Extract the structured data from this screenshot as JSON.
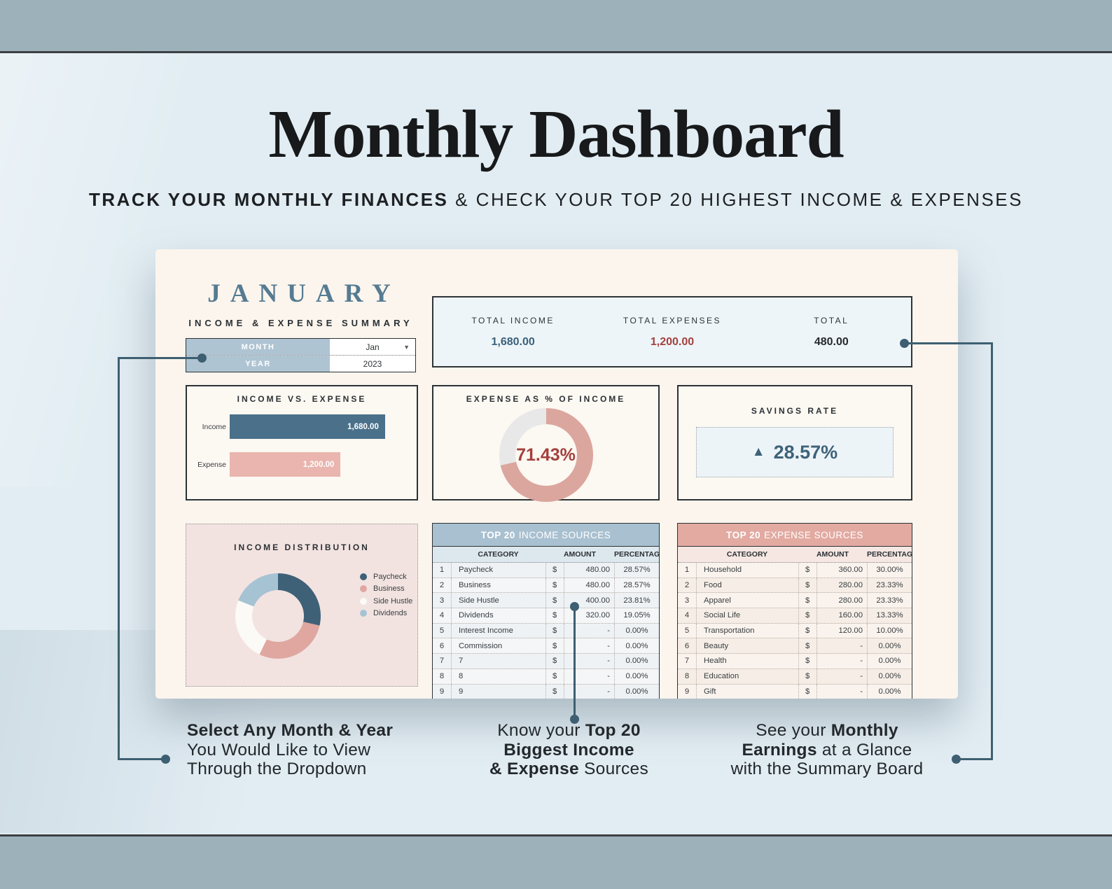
{
  "header": {
    "title": "Monthly Dashboard",
    "subtitle_bold": "TRACK YOUR MONTHLY FINANCES",
    "subtitle_rest": " & CHECK YOUR TOP 20 HIGHEST INCOME & EXPENSES"
  },
  "dashboard": {
    "month_title": "JANUARY",
    "month_subtitle": "INCOME & EXPENSE SUMMARY",
    "selector": {
      "month_label": "MONTH",
      "month_value": "Jan",
      "year_label": "YEAR",
      "year_value": "2023",
      "dropdown_icon": "▼"
    },
    "summary_board": {
      "items": [
        {
          "label": "TOTAL INCOME",
          "value": "1,680.00",
          "color": "#3a617a"
        },
        {
          "label": "TOTAL EXPENSES",
          "value": "1,200.00",
          "color": "#a3403d"
        },
        {
          "label": "TOTAL",
          "value": "480.00",
          "color": "#26292b"
        }
      ]
    },
    "savings": {
      "title": "SAVINGS RATE",
      "arrow": "▲",
      "value": "28.57%"
    },
    "income_table": {
      "title_bold": "TOP 20",
      "title_rest": "INCOME SOURCES",
      "columns": [
        "CATEGORY",
        "AMOUNT",
        "PERCENTAGE"
      ],
      "currency": "$",
      "rows": [
        [
          "1",
          "Paycheck",
          "480.00",
          "28.57%"
        ],
        [
          "2",
          "Business",
          "480.00",
          "28.57%"
        ],
        [
          "3",
          "Side Hustle",
          "400.00",
          "23.81%"
        ],
        [
          "4",
          "Dividends",
          "320.00",
          "19.05%"
        ],
        [
          "5",
          "Interest Income",
          "-",
          "0.00%"
        ],
        [
          "6",
          "Commission",
          "-",
          "0.00%"
        ],
        [
          "7",
          "7",
          "-",
          "0.00%"
        ],
        [
          "8",
          "8",
          "-",
          "0.00%"
        ],
        [
          "9",
          "9",
          "-",
          "0.00%"
        ]
      ]
    },
    "expense_table": {
      "title_bold": "TOP 20",
      "title_rest": "EXPENSE SOURCES",
      "columns": [
        "CATEGORY",
        "AMOUNT",
        "PERCENTAGE"
      ],
      "currency": "$",
      "rows": [
        [
          "1",
          "Household",
          "360.00",
          "30.00%"
        ],
        [
          "2",
          "Food",
          "280.00",
          "23.33%"
        ],
        [
          "3",
          "Apparel",
          "280.00",
          "23.33%"
        ],
        [
          "4",
          "Social Life",
          "160.00",
          "13.33%"
        ],
        [
          "5",
          "Transportation",
          "120.00",
          "10.00%"
        ],
        [
          "6",
          "Beauty",
          "-",
          "0.00%"
        ],
        [
          "7",
          "Health",
          "-",
          "0.00%"
        ],
        [
          "8",
          "Education",
          "-",
          "0.00%"
        ],
        [
          "9",
          "Gift",
          "-",
          "0.00%"
        ]
      ]
    }
  },
  "chart_data": [
    {
      "type": "bar",
      "title": "INCOME VS. EXPENSE",
      "orientation": "horizontal",
      "categories": [
        "Income",
        "Expense"
      ],
      "values": [
        1680,
        1200
      ],
      "value_labels": [
        "1,680.00",
        "1,200.00"
      ],
      "colors": [
        "#4a708a",
        "#e9b5ae"
      ],
      "xlim": [
        0,
        1930
      ]
    },
    {
      "type": "pie",
      "title": "EXPENSE AS % OF INCOME",
      "center_label": "71.43%",
      "slices": [
        {
          "label": "Expense",
          "value": 71.43,
          "color": "#dba69e"
        },
        {
          "label": "Remainder",
          "value": 28.57,
          "color": "#e8e8e8"
        }
      ]
    },
    {
      "type": "pie",
      "title": "INCOME DISTRIBUTION",
      "legend_position": "right",
      "slices": [
        {
          "label": "Paycheck",
          "value": 28.57,
          "color": "#3e6177"
        },
        {
          "label": "Business",
          "value": 28.57,
          "color": "#dfa7a0"
        },
        {
          "label": "Side Hustle",
          "value": 23.81,
          "color": "#fcfaf7"
        },
        {
          "label": "Dividends",
          "value": 19.05,
          "color": "#a6c3d3"
        }
      ]
    }
  ],
  "annotations": [
    {
      "lines": [
        [
          {
            "t": "Select Any Month & Year",
            "b": true
          }
        ],
        [
          {
            "t": "You Would Like to View"
          }
        ],
        [
          {
            "t": "Through the Dropdown"
          }
        ]
      ]
    },
    {
      "lines": [
        [
          {
            "t": "Know your "
          },
          {
            "t": "Top 20",
            "b": true
          }
        ],
        [
          {
            "t": "Biggest Income",
            "b": true
          }
        ],
        [
          {
            "t": "& Expense",
            "b": true
          },
          {
            "t": " Sources"
          }
        ]
      ]
    },
    {
      "lines": [
        [
          {
            "t": "See your "
          },
          {
            "t": "Monthly",
            "b": true
          }
        ],
        [
          {
            "t": "Earnings",
            "b": true
          },
          {
            "t": " at a Glance"
          }
        ],
        [
          {
            "t": "with the Summary Board"
          }
        ]
      ]
    }
  ]
}
